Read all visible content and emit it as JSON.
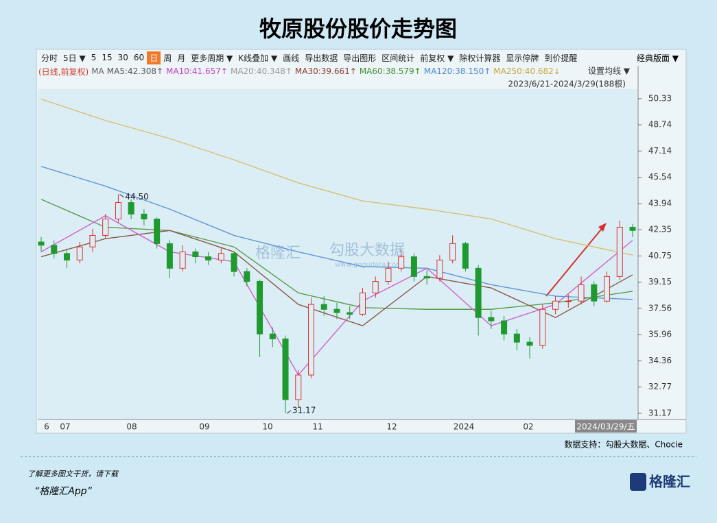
{
  "chart_data": {
    "type": "candlestick",
    "title": "牧原股份股价走势图",
    "toolbar": [
      "分时",
      "5日 ▼",
      "5",
      "15",
      "30",
      "60",
      "日",
      "周",
      "月",
      "更多周期 ▼",
      "K线叠加 ▼",
      "画线",
      "导出数据",
      "导出图形",
      "区间统计",
      "前复权 ▼",
      "除权计算器",
      "显示停牌",
      "到价提醒"
    ],
    "toolbar_selected": 6,
    "toolbar_right": "经典版面 ▼",
    "legend": [
      {
        "text": "(日线,前复权)",
        "color": "#d23c2a"
      },
      {
        "text": "MA",
        "color": "#666666"
      },
      {
        "text": "MA5:42.308↑",
        "color": "#555555"
      },
      {
        "text": "MA10:41.657↑",
        "color": "#c040c8"
      },
      {
        "text": "MA20:40.348↑",
        "color": "#999999"
      },
      {
        "text": "MA30:39.661↑",
        "color": "#8b3a2a"
      },
      {
        "text": "MA60:38.579↑",
        "color": "#3f8f2f"
      },
      {
        "text": "MA120:38.150↑",
        "color": "#4a86d8"
      },
      {
        "text": "MA250:40.682↓",
        "color": "#c9a53a"
      }
    ],
    "ma_setting": "设置均线 ▼",
    "range_label": "2023/6/21-2024/3/29(188根)",
    "x_labels": [
      "6",
      "07",
      "08",
      "09",
      "10",
      "11",
      "12",
      "2024",
      "02"
    ],
    "cursor_label": "2024/03/29/五",
    "ohlc": [
      [
        41.6,
        41.9,
        41.0,
        41.4
      ],
      [
        41.4,
        41.7,
        40.6,
        40.9
      ],
      [
        40.9,
        41.2,
        40.0,
        40.5
      ],
      [
        40.5,
        41.6,
        40.3,
        41.3
      ],
      [
        41.3,
        42.4,
        41.0,
        42.0
      ],
      [
        42.0,
        43.3,
        41.8,
        43.0
      ],
      [
        43.0,
        44.5,
        42.8,
        44.0
      ],
      [
        44.0,
        44.2,
        43.0,
        43.3
      ],
      [
        43.3,
        43.6,
        42.6,
        43.0
      ],
      [
        43.0,
        43.1,
        41.2,
        41.5
      ],
      [
        41.5,
        41.7,
        39.4,
        40.0
      ],
      [
        40.0,
        41.4,
        39.8,
        41.0
      ],
      [
        41.0,
        41.2,
        40.3,
        40.7
      ],
      [
        40.7,
        41.0,
        40.2,
        40.5
      ],
      [
        40.5,
        41.3,
        40.3,
        40.9
      ],
      [
        40.9,
        41.0,
        39.5,
        39.8
      ],
      [
        39.8,
        40.0,
        38.9,
        39.2
      ],
      [
        39.2,
        39.3,
        34.6,
        36.0
      ],
      [
        36.0,
        36.4,
        35.2,
        35.7
      ],
      [
        35.7,
        35.9,
        31.17,
        32.0
      ],
      [
        32.0,
        33.8,
        31.5,
        33.5
      ],
      [
        33.5,
        38.2,
        33.3,
        37.8
      ],
      [
        37.8,
        38.3,
        37.1,
        37.5
      ],
      [
        37.5,
        37.9,
        36.9,
        37.3
      ],
      [
        37.3,
        37.7,
        36.9,
        37.2
      ],
      [
        37.2,
        38.8,
        37.1,
        38.5
      ],
      [
        38.5,
        39.5,
        38.2,
        39.2
      ],
      [
        39.2,
        40.4,
        39.0,
        40.0
      ],
      [
        40.0,
        41.1,
        39.8,
        40.7
      ],
      [
        40.7,
        40.9,
        39.2,
        39.5
      ],
      [
        39.5,
        39.9,
        39.0,
        39.4
      ],
      [
        39.4,
        40.8,
        39.2,
        40.5
      ],
      [
        40.5,
        42.0,
        40.3,
        41.5
      ],
      [
        41.5,
        41.6,
        39.8,
        40.0
      ],
      [
        40.0,
        40.2,
        35.9,
        37.0
      ],
      [
        37.0,
        37.4,
        36.3,
        36.8
      ],
      [
        36.8,
        37.1,
        35.6,
        36.0
      ],
      [
        36.0,
        36.3,
        35.0,
        35.5
      ],
      [
        35.5,
        35.8,
        34.5,
        35.3
      ],
      [
        35.3,
        37.8,
        35.1,
        37.5
      ],
      [
        37.5,
        38.3,
        37.2,
        38.0
      ],
      [
        38.0,
        38.4,
        37.6,
        38.0
      ],
      [
        38.0,
        39.5,
        37.8,
        39.0
      ],
      [
        39.0,
        39.2,
        37.7,
        38.0
      ],
      [
        38.0,
        39.8,
        37.9,
        39.5
      ],
      [
        39.5,
        42.9,
        39.3,
        42.5
      ],
      [
        42.5,
        42.7,
        41.9,
        42.3
      ]
    ],
    "up_color": "#e0302a",
    "down_color": "#1f9a2f",
    "ma_index": [
      0,
      5,
      10,
      15,
      20,
      25,
      30,
      35,
      40,
      46
    ],
    "series": [
      {
        "name": "MA250",
        "color": "#d9bf70",
        "values": [
          50.3,
          49.0,
          47.9,
          46.6,
          45.2,
          44.1,
          43.6,
          43.0,
          41.8,
          40.8
        ]
      },
      {
        "name": "MA120",
        "color": "#5f95dc",
        "values": [
          46.2,
          45.0,
          43.6,
          42.0,
          41.0,
          40.1,
          40.0,
          39.0,
          38.3,
          38.1
        ]
      },
      {
        "name": "MA60",
        "color": "#5a9a4a",
        "values": [
          44.2,
          42.5,
          42.3,
          41.3,
          38.5,
          37.6,
          37.5,
          37.5,
          37.9,
          38.6
        ]
      },
      {
        "name": "MA30",
        "color": "#8b5a4a",
        "values": [
          40.7,
          41.8,
          42.3,
          41.0,
          37.8,
          36.5,
          39.5,
          38.8,
          37.0,
          39.6
        ]
      },
      {
        "name": "MA10",
        "color": "#d060d0",
        "values": [
          41.0,
          43.2,
          41.0,
          40.4,
          33.5,
          38.0,
          40.0,
          36.5,
          37.8,
          41.7
        ]
      }
    ],
    "annotations": [
      {
        "value": 44.5,
        "label": "44.50"
      },
      {
        "value": 31.17,
        "label": "31.17"
      }
    ],
    "ylim": [
      30.79,
      50.91
    ],
    "yticks": [
      50.33,
      48.74,
      47.14,
      45.54,
      43.94,
      42.35,
      40.75,
      39.15,
      37.56,
      35.96,
      34.36,
      32.77,
      31.17
    ],
    "watermark": [
      "格隆汇",
      "勾股大数据",
      "www.gogudata.com"
    ],
    "source": "数据支持：勾股大数据、Chocie",
    "footer_line1": "了解更多图文干货，请下载",
    "footer_line2": "“格隆汇App”",
    "logo": "格隆汇"
  }
}
